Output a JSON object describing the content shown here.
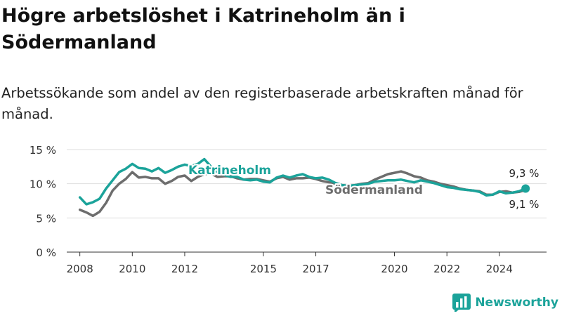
{
  "title": "Högre arbetslöshet i Katrineholm än i Södermanland",
  "subtitle": "Arbetssökande som andel av den registerbaserade arbetskraften månad för månad.",
  "brand": {
    "name": "Newsworthy",
    "color": "#1ba39a",
    "icon": "bar-chart-logo-icon"
  },
  "chart_data": {
    "type": "line",
    "title": "Högre arbetslöshet i Katrineholm än i Södermanland",
    "subtitle": "Arbetssökande som andel av den registerbaserade arbetskraften månad för månad.",
    "xlabel": "",
    "ylabel": "",
    "x_ticks": [
      "2008",
      "2010",
      "2012",
      "2015",
      "2017",
      "2020",
      "2022",
      "2024"
    ],
    "y_ticks": [
      "0 %",
      "5 %",
      "10 %",
      "15 %"
    ],
    "xlim": [
      2007.5,
      2025.8
    ],
    "ylim": [
      0,
      15
    ],
    "grid": true,
    "series": [
      {
        "name": "Katrineholm",
        "color": "#1ba39a",
        "end_label": "9,3 %",
        "x": [
          2008.0,
          2008.25,
          2008.5,
          2008.75,
          2009.0,
          2009.25,
          2009.5,
          2009.75,
          2010.0,
          2010.25,
          2010.5,
          2010.75,
          2011.0,
          2011.25,
          2011.5,
          2011.75,
          2012.0,
          2012.25,
          2012.5,
          2012.75,
          2013.0,
          2013.25,
          2013.5,
          2013.75,
          2014.0,
          2014.25,
          2014.5,
          2014.75,
          2015.0,
          2015.25,
          2015.5,
          2015.75,
          2016.0,
          2016.25,
          2016.5,
          2016.75,
          2017.0,
          2017.25,
          2017.5,
          2017.75,
          2018.0,
          2018.25,
          2018.5,
          2018.75,
          2019.0,
          2019.25,
          2019.5,
          2019.75,
          2020.0,
          2020.25,
          2020.5,
          2020.75,
          2021.0,
          2021.25,
          2021.5,
          2021.75,
          2022.0,
          2022.25,
          2022.5,
          2022.75,
          2023.0,
          2023.25,
          2023.5,
          2023.75,
          2024.0,
          2024.25,
          2024.5,
          2024.75,
          2025.0
        ],
        "y": [
          8.0,
          7.0,
          7.3,
          7.8,
          9.3,
          10.5,
          11.7,
          12.2,
          12.9,
          12.3,
          12.2,
          11.8,
          12.3,
          11.6,
          12.0,
          12.5,
          12.8,
          12.6,
          12.9,
          13.6,
          12.5,
          11.7,
          11.3,
          11.0,
          11.0,
          10.6,
          10.5,
          10.6,
          10.3,
          10.2,
          10.9,
          11.2,
          10.9,
          11.2,
          11.4,
          11.0,
          10.8,
          10.9,
          10.6,
          10.1,
          9.8,
          9.7,
          9.8,
          9.9,
          10.0,
          10.3,
          10.4,
          10.5,
          10.5,
          10.6,
          10.4,
          10.2,
          10.5,
          10.3,
          10.1,
          9.8,
          9.5,
          9.4,
          9.2,
          9.1,
          9.0,
          8.8,
          8.3,
          8.4,
          8.9,
          8.6,
          8.7,
          8.9,
          9.3
        ]
      },
      {
        "name": "Södermanland",
        "color": "#6d6d6d",
        "end_label": "9,1 %",
        "x": [
          2008.0,
          2008.25,
          2008.5,
          2008.75,
          2009.0,
          2009.25,
          2009.5,
          2009.75,
          2010.0,
          2010.25,
          2010.5,
          2010.75,
          2011.0,
          2011.25,
          2011.5,
          2011.75,
          2012.0,
          2012.25,
          2012.5,
          2012.75,
          2013.0,
          2013.25,
          2013.5,
          2013.75,
          2014.0,
          2014.25,
          2014.5,
          2014.75,
          2015.0,
          2015.25,
          2015.5,
          2015.75,
          2016.0,
          2016.25,
          2016.5,
          2016.75,
          2017.0,
          2017.25,
          2017.5,
          2017.75,
          2018.0,
          2018.25,
          2018.5,
          2018.75,
          2019.0,
          2019.25,
          2019.5,
          2019.75,
          2020.0,
          2020.25,
          2020.5,
          2020.75,
          2021.0,
          2021.25,
          2021.5,
          2021.75,
          2022.0,
          2022.25,
          2022.5,
          2022.75,
          2023.0,
          2023.25,
          2023.5,
          2023.75,
          2024.0,
          2024.25,
          2024.5,
          2024.75,
          2025.0
        ],
        "y": [
          6.2,
          5.8,
          5.3,
          5.9,
          7.2,
          9.0,
          10.0,
          10.7,
          11.7,
          10.9,
          11.0,
          10.8,
          10.8,
          10.0,
          10.4,
          11.0,
          11.2,
          10.4,
          11.0,
          11.4,
          11.5,
          11.0,
          11.1,
          11.1,
          10.8,
          10.6,
          10.7,
          10.7,
          10.5,
          10.3,
          10.8,
          11.0,
          10.6,
          10.8,
          10.8,
          10.9,
          10.7,
          10.4,
          10.2,
          10.0,
          9.8,
          9.7,
          9.8,
          10.0,
          10.1,
          10.6,
          11.0,
          11.4,
          11.6,
          11.8,
          11.5,
          11.1,
          10.9,
          10.5,
          10.3,
          10.0,
          9.8,
          9.6,
          9.3,
          9.1,
          9.0,
          8.9,
          8.4,
          8.4,
          8.8,
          8.9,
          8.7,
          8.8,
          9.1
        ]
      }
    ]
  }
}
